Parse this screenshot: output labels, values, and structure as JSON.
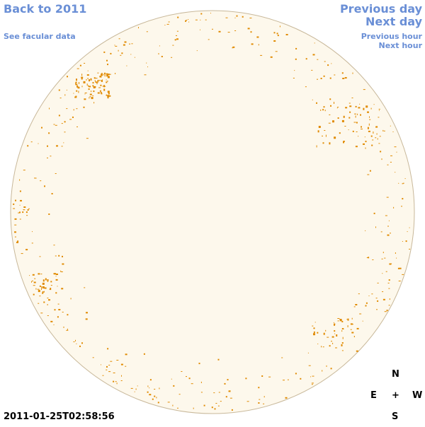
{
  "nav": {
    "back": "Back to 2011",
    "facular": "See facular data",
    "previous_day": "Previous day",
    "next_day": "Next day",
    "previous_hour": "Previous hour",
    "next_hour": "Next hour"
  },
  "timestamp": "2011-01-25T02:58:56",
  "compass": {
    "north": "N",
    "east": "E",
    "center": "+",
    "west": "W",
    "south": "S"
  },
  "colors": {
    "disk_fill": "#fdf8ec",
    "disk_edge": "#c8b89a",
    "spot": "#e08a00",
    "link": "#6a8fd6"
  }
}
